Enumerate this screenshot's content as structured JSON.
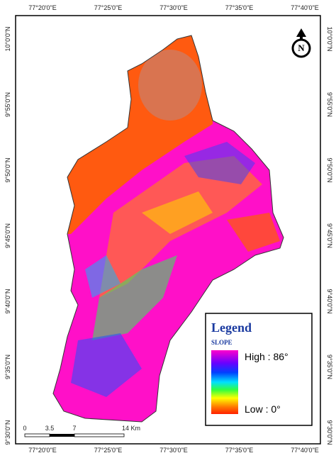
{
  "map": {
    "top_labels": [
      "77°20'0\"E",
      "77°25'0\"E",
      "77°30'0\"E",
      "77°35'0\"E",
      "77°40'0\"E"
    ],
    "bottom_labels": [
      "77°20'0\"E",
      "77°25'0\"E",
      "77°30'0\"E",
      "77°35'0\"E",
      "77°40'0\"E"
    ],
    "left_labels": [
      "10°0'0\"N",
      "9°55'0\"N",
      "9°50'0\"N",
      "9°45'0\"N",
      "9°40'0\"N",
      "9°35'0\"N",
      "9°30'0\"N"
    ],
    "right_labels": [
      "10°0'0\"N",
      "9°55'0\"N",
      "9°50'0\"N",
      "9°45'0\"N",
      "9°40'0\"N",
      "9°35'0\"N",
      "9°30'0\"N"
    ]
  },
  "north_arrow": {
    "label": "N"
  },
  "legend": {
    "title": "Legend",
    "subtitle": "SLOPE",
    "high": "High : 86°",
    "low": "Low : 0°"
  },
  "scale_bar": {
    "labels": [
      "0",
      "3.5",
      "7",
      "14 Km"
    ]
  }
}
